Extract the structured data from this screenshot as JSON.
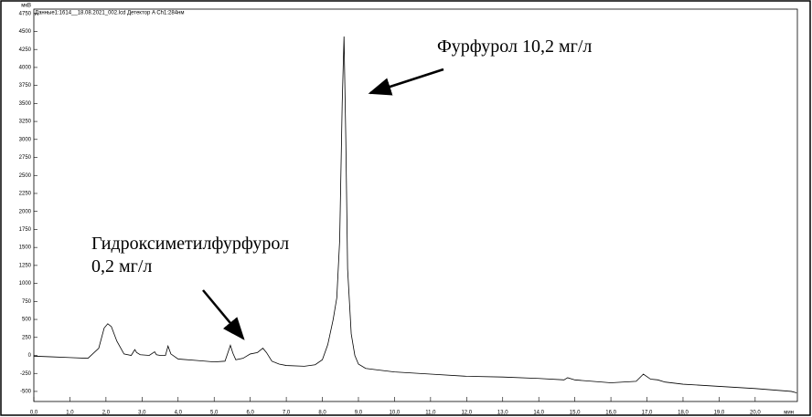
{
  "chart_data": {
    "type": "line",
    "y_unit": "мкВ",
    "subtitle": "Данные1:1614__18.08.2021_002.lcd Детектор A Ch1:284нм",
    "x_unit": "мин",
    "annotations": [
      [
        "Фурфурол 10,2 мг/л"
      ],
      [
        "Гидроксиметилфурфурол",
        "0,2 мг/л"
      ]
    ],
    "color": "#000000",
    "x": [
      0,
      0.5,
      1.0,
      1.5,
      1.8,
      1.95,
      2.05,
      2.15,
      2.3,
      2.5,
      2.7,
      2.8,
      2.85,
      2.95,
      3.2,
      3.35,
      3.4,
      3.5,
      3.65,
      3.72,
      3.8,
      4.0,
      4.5,
      5.0,
      5.3,
      5.45,
      5.52,
      5.6,
      5.8,
      6.0,
      6.2,
      6.35,
      6.45,
      6.6,
      6.8,
      7.0,
      7.5,
      7.8,
      8.0,
      8.15,
      8.3,
      8.4,
      8.48,
      8.55,
      8.6,
      8.65,
      8.7,
      8.8,
      8.9,
      9.0,
      9.2,
      9.5,
      10,
      11,
      12,
      13,
      14,
      14.7,
      14.8,
      15,
      16,
      16.7,
      16.9,
      17.1,
      17.3,
      17.5,
      18,
      19,
      20,
      21,
      21.15
    ],
    "values": [
      -10,
      -20,
      -30,
      -40,
      100,
      380,
      440,
      400,
      200,
      20,
      0,
      80,
      40,
      10,
      0,
      50,
      10,
      0,
      0,
      130,
      20,
      -50,
      -70,
      -90,
      -80,
      140,
      30,
      -60,
      -40,
      20,
      40,
      100,
      40,
      -80,
      -120,
      -140,
      -150,
      -130,
      -60,
      150,
      500,
      800,
      1600,
      3500,
      4430,
      3000,
      1200,
      300,
      0,
      -120,
      -180,
      -200,
      -230,
      -260,
      -290,
      -300,
      -320,
      -340,
      -310,
      -340,
      -380,
      -360,
      -260,
      -330,
      -340,
      -370,
      -400,
      -430,
      -460,
      -500,
      -520
    ],
    "xlim": [
      0,
      21.17
    ],
    "ylim": [
      -640,
      4810
    ],
    "xticks": [
      {
        "value": 0,
        "label": "0,0"
      },
      {
        "value": 1,
        "label": "1,0"
      },
      {
        "value": 2,
        "label": "2,0"
      },
      {
        "value": 3,
        "label": "3,0"
      },
      {
        "value": 4,
        "label": "4,0"
      },
      {
        "value": 5,
        "label": "5,0"
      },
      {
        "value": 6,
        "label": "6,0"
      },
      {
        "value": 7,
        "label": "7,0"
      },
      {
        "value": 8,
        "label": "8,0"
      },
      {
        "value": 9,
        "label": "9,0"
      },
      {
        "value": 10,
        "label": "10,0"
      },
      {
        "value": 11,
        "label": "11,0"
      },
      {
        "value": 12,
        "label": "12,0"
      },
      {
        "value": 13,
        "label": "13,0"
      },
      {
        "value": 14,
        "label": "14,0"
      },
      {
        "value": 15,
        "label": "15,0"
      },
      {
        "value": 16,
        "label": "16,0"
      },
      {
        "value": 17,
        "label": "17,0"
      },
      {
        "value": 18,
        "label": "18,0"
      },
      {
        "value": 19,
        "label": "19,0"
      },
      {
        "value": 20,
        "label": "20,0"
      }
    ],
    "yticks": [
      4750,
      4500,
      4250,
      4000,
      3750,
      3500,
      3250,
      3000,
      2750,
      2500,
      2250,
      2000,
      1750,
      1500,
      1250,
      1000,
      750,
      500,
      250,
      0,
      -250,
      -500
    ]
  }
}
